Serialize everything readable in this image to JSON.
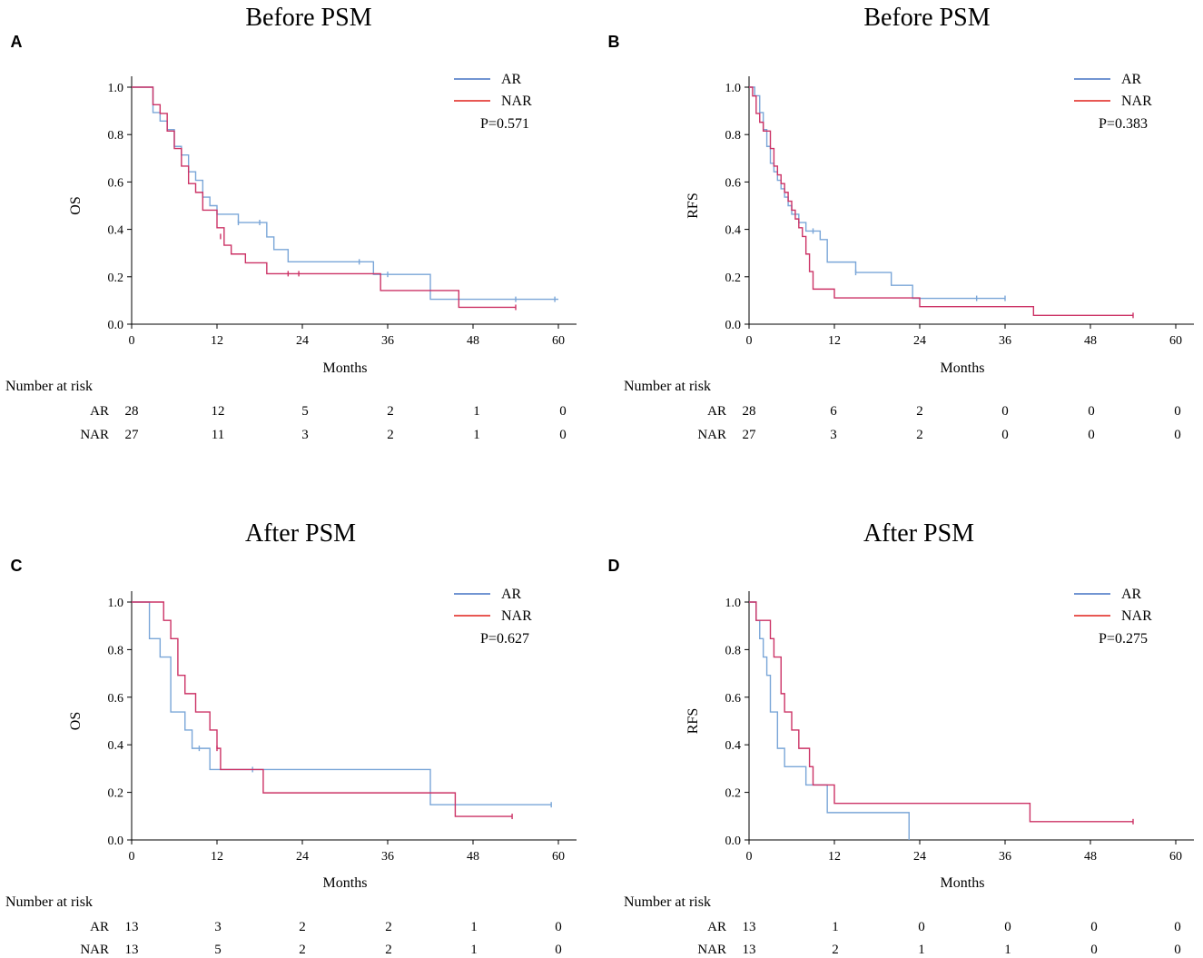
{
  "colors": {
    "AR": "#7aa6d8",
    "NAR": "#cc3366",
    "AR_legend": "#4472c4",
    "NAR_legend": "#e0201a"
  },
  "chart_data": [
    {
      "type": "line",
      "panel": "A",
      "title": "Before PSM",
      "xlabel": "Months",
      "ylabel": "OS",
      "xlim": [
        0,
        60
      ],
      "ylim": [
        0,
        1
      ],
      "xticks": [
        "0",
        "12",
        "24",
        "36",
        "48",
        "60"
      ],
      "yticks": [
        "0.0",
        "0.2",
        "0.4",
        "0.6",
        "0.8",
        "1.0"
      ],
      "pvalue": "P=0.571",
      "series": [
        {
          "name": "AR",
          "steps": [
            [
              0,
              1.0
            ],
            [
              3,
              0.893
            ],
            [
              4,
              0.857
            ],
            [
              5,
              0.821
            ],
            [
              6,
              0.75
            ],
            [
              7,
              0.714
            ],
            [
              8,
              0.643
            ],
            [
              9,
              0.607
            ],
            [
              10,
              0.536
            ],
            [
              11,
              0.5
            ],
            [
              12,
              0.464
            ],
            [
              15,
              0.429
            ],
            [
              19,
              0.368
            ],
            [
              20,
              0.315
            ],
            [
              22,
              0.263
            ],
            [
              34,
              0.21
            ],
            [
              42,
              0.105
            ],
            [
              60,
              0.105
            ]
          ],
          "censored": [
            [
              15,
              0.429
            ],
            [
              18,
              0.429
            ],
            [
              32,
              0.263
            ],
            [
              36,
              0.21
            ],
            [
              54,
              0.105
            ],
            [
              59.5,
              0.105
            ]
          ]
        },
        {
          "name": "NAR",
          "steps": [
            [
              0,
              1.0
            ],
            [
              3,
              0.926
            ],
            [
              4,
              0.889
            ],
            [
              5,
              0.815
            ],
            [
              6,
              0.741
            ],
            [
              7,
              0.667
            ],
            [
              8,
              0.593
            ],
            [
              9,
              0.556
            ],
            [
              10,
              0.481
            ],
            [
              12,
              0.407
            ],
            [
              13,
              0.333
            ],
            [
              14,
              0.296
            ],
            [
              16,
              0.259
            ],
            [
              19,
              0.213
            ],
            [
              35,
              0.142
            ],
            [
              46,
              0.071
            ],
            [
              54,
              0.071
            ]
          ],
          "censored": [
            [
              12.5,
              0.37
            ],
            [
              22,
              0.213
            ],
            [
              23.5,
              0.213
            ],
            [
              54,
              0.071
            ]
          ]
        }
      ],
      "risk_table": {
        "header": "Number at risk",
        "rows": [
          {
            "label": "AR",
            "values": [
              "28",
              "12",
              "5",
              "2",
              "1",
              "0"
            ]
          },
          {
            "label": "NAR",
            "values": [
              "27",
              "11",
              "3",
              "2",
              "1",
              "0"
            ]
          }
        ]
      }
    },
    {
      "type": "line",
      "panel": "B",
      "title": "Before PSM",
      "xlabel": "Months",
      "ylabel": "RFS",
      "xlim": [
        0,
        60
      ],
      "ylim": [
        0,
        1
      ],
      "xticks": [
        "0",
        "12",
        "24",
        "36",
        "48",
        "60"
      ],
      "yticks": [
        "0.0",
        "0.2",
        "0.4",
        "0.6",
        "0.8",
        "1.0"
      ],
      "pvalue": "P=0.383",
      "series": [
        {
          "name": "AR",
          "steps": [
            [
              0,
              1.0
            ],
            [
              0.8,
              0.964
            ],
            [
              1.5,
              0.893
            ],
            [
              2,
              0.821
            ],
            [
              2.5,
              0.75
            ],
            [
              3,
              0.679
            ],
            [
              3.5,
              0.643
            ],
            [
              4,
              0.607
            ],
            [
              4.5,
              0.571
            ],
            [
              5,
              0.536
            ],
            [
              5.5,
              0.5
            ],
            [
              6,
              0.464
            ],
            [
              7,
              0.429
            ],
            [
              8,
              0.393
            ],
            [
              10,
              0.357
            ],
            [
              11,
              0.262
            ],
            [
              15,
              0.218
            ],
            [
              20,
              0.164
            ],
            [
              23,
              0.109
            ],
            [
              36,
              0.109
            ]
          ],
          "censored": [
            [
              9,
              0.393
            ],
            [
              15,
              0.218
            ],
            [
              32,
              0.109
            ],
            [
              36,
              0.109
            ]
          ]
        },
        {
          "name": "NAR",
          "steps": [
            [
              0,
              1.0
            ],
            [
              0.5,
              0.963
            ],
            [
              1,
              0.889
            ],
            [
              1.5,
              0.852
            ],
            [
              2,
              0.815
            ],
            [
              3,
              0.741
            ],
            [
              3.5,
              0.667
            ],
            [
              4,
              0.63
            ],
            [
              4.5,
              0.593
            ],
            [
              5,
              0.556
            ],
            [
              5.5,
              0.519
            ],
            [
              6,
              0.481
            ],
            [
              6.5,
              0.444
            ],
            [
              7,
              0.407
            ],
            [
              7.5,
              0.37
            ],
            [
              8,
              0.296
            ],
            [
              8.5,
              0.222
            ],
            [
              9,
              0.148
            ],
            [
              12,
              0.111
            ],
            [
              24,
              0.074
            ],
            [
              40,
              0.037
            ],
            [
              54,
              0.037
            ]
          ],
          "censored": [
            [
              54,
              0.037
            ]
          ]
        }
      ],
      "risk_table": {
        "header": "Number at risk",
        "rows": [
          {
            "label": "AR",
            "values": [
              "28",
              "6",
              "2",
              "0",
              "0",
              "0"
            ]
          },
          {
            "label": "NAR",
            "values": [
              "27",
              "3",
              "2",
              "0",
              "0",
              "0"
            ]
          }
        ]
      }
    },
    {
      "type": "line",
      "panel": "C",
      "title": "After PSM",
      "xlabel": "Months",
      "ylabel": "OS",
      "xlim": [
        0,
        60
      ],
      "ylim": [
        0,
        1
      ],
      "xticks": [
        "0",
        "12",
        "24",
        "36",
        "48",
        "60"
      ],
      "yticks": [
        "0.0",
        "0.2",
        "0.4",
        "0.6",
        "0.8",
        "1.0"
      ],
      "pvalue": "P=0.627",
      "series": [
        {
          "name": "AR",
          "steps": [
            [
              0,
              1.0
            ],
            [
              2.5,
              0.846
            ],
            [
              4,
              0.769
            ],
            [
              5.5,
              0.538
            ],
            [
              7.5,
              0.462
            ],
            [
              8.5,
              0.385
            ],
            [
              11,
              0.296
            ],
            [
              42,
              0.148
            ],
            [
              59,
              0.148
            ]
          ],
          "censored": [
            [
              9.5,
              0.385
            ],
            [
              17,
              0.296
            ],
            [
              59,
              0.148
            ]
          ]
        },
        {
          "name": "NAR",
          "steps": [
            [
              0,
              1.0
            ],
            [
              4.5,
              0.923
            ],
            [
              5.5,
              0.846
            ],
            [
              6.5,
              0.692
            ],
            [
              7.5,
              0.615
            ],
            [
              9,
              0.538
            ],
            [
              11,
              0.462
            ],
            [
              12,
              0.385
            ],
            [
              12.5,
              0.296
            ],
            [
              18.5,
              0.198
            ],
            [
              45.5,
              0.099
            ],
            [
              53.5,
              0.099
            ]
          ],
          "censored": [
            [
              12,
              0.385
            ],
            [
              53.5,
              0.099
            ]
          ]
        }
      ],
      "risk_table": {
        "header": "Number at risk",
        "rows": [
          {
            "label": "AR",
            "values": [
              "13",
              "3",
              "2",
              "2",
              "1",
              "0"
            ]
          },
          {
            "label": "NAR",
            "values": [
              "13",
              "5",
              "2",
              "2",
              "1",
              "0"
            ]
          }
        ]
      }
    },
    {
      "type": "line",
      "panel": "D",
      "title": "After PSM",
      "xlabel": "Months",
      "ylabel": "RFS",
      "xlim": [
        0,
        60
      ],
      "ylim": [
        0,
        1
      ],
      "xticks": [
        "0",
        "12",
        "24",
        "36",
        "48",
        "60"
      ],
      "yticks": [
        "0.0",
        "0.2",
        "0.4",
        "0.6",
        "0.8",
        "1.0"
      ],
      "pvalue": "P=0.275",
      "series": [
        {
          "name": "AR",
          "steps": [
            [
              0,
              1.0
            ],
            [
              1,
              0.923
            ],
            [
              1.5,
              0.846
            ],
            [
              2,
              0.769
            ],
            [
              2.5,
              0.692
            ],
            [
              3,
              0.538
            ],
            [
              4,
              0.385
            ],
            [
              5,
              0.308
            ],
            [
              8,
              0.231
            ],
            [
              11,
              0.115
            ],
            [
              22.5,
              0.0
            ]
          ],
          "censored": []
        },
        {
          "name": "NAR",
          "steps": [
            [
              0,
              1.0
            ],
            [
              1,
              0.923
            ],
            [
              3,
              0.846
            ],
            [
              3.5,
              0.769
            ],
            [
              4.5,
              0.615
            ],
            [
              5,
              0.538
            ],
            [
              6,
              0.462
            ],
            [
              7,
              0.385
            ],
            [
              8.5,
              0.308
            ],
            [
              9,
              0.231
            ],
            [
              12,
              0.154
            ],
            [
              39.5,
              0.077
            ],
            [
              54,
              0.077
            ]
          ],
          "censored": [
            [
              54,
              0.077
            ]
          ]
        }
      ],
      "risk_table": {
        "header": "Number at risk",
        "rows": [
          {
            "label": "AR",
            "values": [
              "13",
              "1",
              "0",
              "0",
              "0",
              "0"
            ]
          },
          {
            "label": "NAR",
            "values": [
              "13",
              "2",
              "1",
              "1",
              "0",
              "0"
            ]
          }
        ]
      }
    }
  ]
}
